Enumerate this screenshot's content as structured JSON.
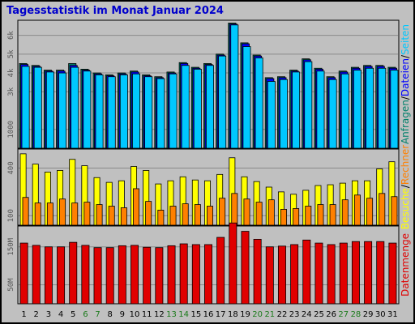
{
  "title": "Tagesstatistik im Monat Januar 2024",
  "colors": {
    "background": "#c0c0c0",
    "plot_bg": "#c0c0c0",
    "title": "#0000cc",
    "anfragen": "#00806b",
    "dateien": "#0000ff",
    "seiten": "#00c8ff",
    "rechner": "#ff8000",
    "besuche": "#ffff00",
    "datenmenge": "#e00000",
    "weekend_label": "#1a7a1a"
  },
  "side_labels": {
    "top": [
      "Anfragen",
      "Dateien",
      "Seiten"
    ],
    "middle": [
      "Besuche",
      "Rechner"
    ],
    "bottom": [
      "Datenmenge"
    ]
  },
  "chart_data": [
    {
      "type": "bar",
      "panel": "top",
      "categories": [
        "1",
        "2",
        "3",
        "4",
        "5",
        "6",
        "7",
        "8",
        "9",
        "10",
        "11",
        "12",
        "13",
        "14",
        "15",
        "16",
        "17",
        "18",
        "19",
        "20",
        "21",
        "22",
        "23",
        "24",
        "25",
        "26",
        "27",
        "28",
        "29",
        "30",
        "31"
      ],
      "weekend_days": [
        "6",
        "7",
        "13",
        "14",
        "20",
        "21",
        "27",
        "28"
      ],
      "yticks": [
        1000,
        3000,
        4000,
        5000,
        6000
      ],
      "ytick_labels": [
        "1000",
        "3k",
        "4k",
        "5k",
        "6k"
      ],
      "ylim": [
        0,
        6800
      ],
      "series": [
        {
          "name": "Anfragen",
          "values": [
            4500,
            4400,
            4150,
            4150,
            4500,
            4200,
            4000,
            3900,
            4000,
            4100,
            3900,
            3800,
            4050,
            4550,
            4300,
            4500,
            5000,
            6650,
            5600,
            4950,
            3750,
            3800,
            4150,
            4750,
            4250,
            3800,
            4100,
            4300,
            4400,
            4400,
            4300
          ]
        },
        {
          "name": "Dateien",
          "values": [
            4450,
            4350,
            4100,
            4100,
            4400,
            4150,
            3950,
            3850,
            3950,
            4050,
            3850,
            3750,
            4000,
            4500,
            4250,
            4450,
            4950,
            6600,
            5550,
            4900,
            3700,
            3750,
            4100,
            4700,
            4200,
            3750,
            4050,
            4250,
            4350,
            4350,
            4250
          ]
        },
        {
          "name": "Seiten",
          "values": [
            4350,
            4300,
            4050,
            4000,
            4300,
            4100,
            3900,
            3800,
            3900,
            3950,
            3800,
            3700,
            3950,
            4400,
            4200,
            4400,
            4900,
            6550,
            5400,
            4800,
            3550,
            3650,
            4050,
            4600,
            4100,
            3650,
            3950,
            4150,
            4250,
            4250,
            4150
          ]
        }
      ]
    },
    {
      "type": "bar",
      "panel": "middle",
      "categories": [
        "1",
        "2",
        "3",
        "4",
        "5",
        "6",
        "7",
        "8",
        "9",
        "10",
        "11",
        "12",
        "13",
        "14",
        "15",
        "16",
        "17",
        "18",
        "19",
        "20",
        "21",
        "22",
        "23",
        "24",
        "25",
        "26",
        "27",
        "28",
        "29",
        "30",
        "31"
      ],
      "yticks": [
        100,
        400
      ],
      "ytick_labels": [
        "100",
        "400"
      ],
      "ylim": [
        40,
        520
      ],
      "series": [
        {
          "name": "Besuche",
          "values": [
            490,
            425,
            375,
            385,
            455,
            415,
            340,
            310,
            320,
            410,
            385,
            300,
            320,
            345,
            325,
            320,
            360,
            465,
            345,
            315,
            280,
            250,
            235,
            260,
            290,
            295,
            305,
            320,
            320,
            395,
            440
          ]
        },
        {
          "name": "Rechner",
          "values": [
            215,
            180,
            180,
            205,
            180,
            185,
            170,
            160,
            150,
            270,
            190,
            135,
            160,
            175,
            170,
            160,
            210,
            240,
            205,
            185,
            200,
            140,
            145,
            160,
            170,
            170,
            200,
            230,
            210,
            240,
            220
          ]
        }
      ]
    },
    {
      "type": "bar",
      "panel": "bottom",
      "categories": [
        "1",
        "2",
        "3",
        "4",
        "5",
        "6",
        "7",
        "8",
        "9",
        "10",
        "11",
        "12",
        "13",
        "14",
        "15",
        "16",
        "17",
        "18",
        "19",
        "20",
        "21",
        "22",
        "23",
        "24",
        "25",
        "26",
        "27",
        "28",
        "29",
        "30",
        "31"
      ],
      "yticks": [
        50,
        150
      ],
      "ytick_labels": [
        "50M",
        "150M"
      ],
      "ylim": [
        0,
        205
      ],
      "series": [
        {
          "name": "Datenmenge",
          "values": [
            160,
            154,
            150,
            150,
            162,
            154,
            148,
            148,
            153,
            154,
            149,
            148,
            153,
            158,
            156,
            156,
            175,
            213,
            191,
            170,
            150,
            152,
            156,
            168,
            160,
            156,
            160,
            164,
            164,
            164,
            160
          ]
        }
      ]
    }
  ]
}
